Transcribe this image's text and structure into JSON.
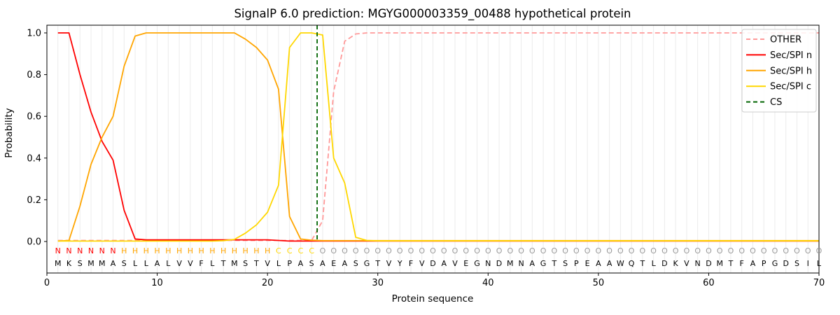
{
  "chart_data": {
    "type": "line",
    "title": "SignalP 6.0 prediction: MGYG000003359_00488 hypothetical protein",
    "xlabel": "Protein sequence",
    "ylabel": "Probability",
    "xlim": [
      0,
      70
    ],
    "ylim": [
      -0.15,
      1.04
    ],
    "x_ticks": [
      0,
      10,
      20,
      30,
      40,
      50,
      60,
      70
    ],
    "y_ticks": [
      "0.0",
      "0.2",
      "0.4",
      "0.6",
      "0.8",
      "1.0"
    ],
    "grid": "vertical-line-per-residue",
    "legend_position": "upper-right",
    "series": [
      {
        "name": "OTHER",
        "color": "#ff9999",
        "style": "dashed",
        "values": [
          0.005,
          0.005,
          0.005,
          0.005,
          0.005,
          0.005,
          0.005,
          0.005,
          0.005,
          0.005,
          0.005,
          0.005,
          0.005,
          0.005,
          0.005,
          0.005,
          0.005,
          0.005,
          0.005,
          0.005,
          0.005,
          0.005,
          0.005,
          0.005,
          0.1,
          0.72,
          0.96,
          0.995,
          1.0,
          1.0,
          1.0,
          1.0,
          1.0,
          1.0,
          1.0,
          1.0,
          1.0,
          1.0,
          1.0,
          1.0,
          1.0,
          1.0,
          1.0,
          1.0,
          1.0,
          1.0,
          1.0,
          1.0,
          1.0,
          1.0,
          1.0,
          1.0,
          1.0,
          1.0,
          1.0,
          1.0,
          1.0,
          1.0,
          1.0,
          1.0,
          1.0,
          1.0,
          1.0,
          1.0,
          1.0,
          1.0,
          1.0,
          1.0,
          1.0,
          1.0
        ]
      },
      {
        "name": "Sec/SPI n",
        "color": "#ff0000",
        "style": "solid",
        "values": [
          1.0,
          1.0,
          0.8,
          0.62,
          0.48,
          0.39,
          0.15,
          0.012,
          0.008,
          0.008,
          0.008,
          0.008,
          0.008,
          0.008,
          0.008,
          0.008,
          0.008,
          0.008,
          0.008,
          0.008,
          0.005,
          0.002,
          0.002,
          0.002,
          0.002,
          0.002,
          0.002,
          0.002,
          0.002,
          0.002,
          0.002,
          0.002,
          0.002,
          0.002,
          0.002,
          0.002,
          0.002,
          0.002,
          0.002,
          0.002,
          0.002,
          0.002,
          0.002,
          0.002,
          0.002,
          0.002,
          0.002,
          0.002,
          0.002,
          0.002,
          0.002,
          0.002,
          0.002,
          0.002,
          0.002,
          0.002,
          0.002,
          0.002,
          0.002,
          0.002,
          0.002,
          0.002,
          0.002,
          0.002,
          0.002,
          0.002,
          0.002,
          0.002,
          0.002,
          0.002
        ]
      },
      {
        "name": "Sec/SPI h",
        "color": "#ffa500",
        "style": "solid",
        "values": [
          0.002,
          0.005,
          0.17,
          0.37,
          0.5,
          0.6,
          0.84,
          0.985,
          1.0,
          1.0,
          1.0,
          1.0,
          1.0,
          1.0,
          1.0,
          1.0,
          1.0,
          0.97,
          0.93,
          0.87,
          0.73,
          0.12,
          0.012,
          0.006,
          0.004,
          0.004,
          0.004,
          0.004,
          0.004,
          0.004,
          0.004,
          0.004,
          0.004,
          0.004,
          0.004,
          0.004,
          0.004,
          0.004,
          0.004,
          0.004,
          0.004,
          0.004,
          0.004,
          0.004,
          0.004,
          0.004,
          0.004,
          0.004,
          0.004,
          0.004,
          0.004,
          0.004,
          0.004,
          0.004,
          0.004,
          0.004,
          0.004,
          0.004,
          0.004,
          0.004,
          0.004,
          0.004,
          0.004,
          0.004,
          0.004,
          0.004,
          0.004,
          0.004,
          0.004,
          0.004
        ]
      },
      {
        "name": "Sec/SPI c",
        "color": "#ffd700",
        "style": "solid",
        "values": [
          0.002,
          0.002,
          0.002,
          0.002,
          0.002,
          0.002,
          0.002,
          0.002,
          0.002,
          0.002,
          0.002,
          0.002,
          0.002,
          0.002,
          0.002,
          0.004,
          0.01,
          0.04,
          0.08,
          0.14,
          0.27,
          0.93,
          1.0,
          1.0,
          0.99,
          0.4,
          0.28,
          0.02,
          0.005,
          0.003,
          0.003,
          0.003,
          0.003,
          0.003,
          0.003,
          0.003,
          0.003,
          0.003,
          0.003,
          0.003,
          0.003,
          0.003,
          0.003,
          0.003,
          0.003,
          0.003,
          0.003,
          0.003,
          0.003,
          0.003,
          0.003,
          0.003,
          0.003,
          0.003,
          0.003,
          0.003,
          0.003,
          0.003,
          0.003,
          0.003,
          0.003,
          0.003,
          0.003,
          0.003,
          0.003,
          0.003,
          0.003,
          0.003,
          0.003,
          0.003
        ]
      }
    ],
    "cs_line": {
      "name": "CS",
      "position": 24.5,
      "color": "#006400",
      "style": "dashed"
    },
    "sequence": "MKSMMASLLALVVFLTMSTVLPASAEASGTVYFVDAVEGNDMNAGTSPEAAWQTLDKVNDMTFAPGDSIL",
    "sequence_color": "#000000",
    "regions": [
      {
        "label": "N",
        "start": 1,
        "end": 6,
        "color": "#ff0000"
      },
      {
        "label": "H",
        "start": 7,
        "end": 20,
        "color": "#ffa500"
      },
      {
        "label": "C",
        "start": 21,
        "end": 24,
        "color": "#ffd700"
      },
      {
        "label": "O",
        "start": 25,
        "end": 70,
        "color": "#999999"
      }
    ],
    "legend": [
      {
        "label": "OTHER",
        "color": "#ff9999",
        "dash": true
      },
      {
        "label": "Sec/SPI n",
        "color": "#ff0000",
        "dash": false
      },
      {
        "label": "Sec/SPI h",
        "color": "#ffa500",
        "dash": false
      },
      {
        "label": "Sec/SPI c",
        "color": "#ffd700",
        "dash": false
      },
      {
        "label": "CS",
        "color": "#006400",
        "dash": true
      }
    ]
  }
}
